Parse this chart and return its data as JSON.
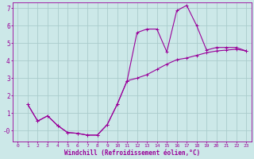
{
  "background_color": "#cce8e8",
  "grid_color": "#aacccc",
  "line_color": "#990099",
  "xlabel": "Windchill (Refroidissement éolien,°C)",
  "xlabel_fontsize": 5.5,
  "xtick_fontsize": 4.5,
  "ytick_fontsize": 5.5,
  "xlim": [
    -0.5,
    23.5
  ],
  "ylim": [
    -0.6,
    7.3
  ],
  "yticks": [
    0,
    1,
    2,
    3,
    4,
    5,
    6,
    7
  ],
  "ytick_labels": [
    "-0",
    "1",
    "2",
    "3",
    "4",
    "5",
    "6",
    "7"
  ],
  "xticks": [
    0,
    1,
    2,
    3,
    4,
    5,
    6,
    7,
    8,
    9,
    10,
    11,
    12,
    13,
    14,
    15,
    16,
    17,
    18,
    19,
    20,
    21,
    22,
    23
  ],
  "curve1_x": [
    1,
    2,
    3,
    4,
    5,
    6,
    7,
    8,
    9,
    10,
    11,
    12,
    13,
    14,
    15,
    16,
    17,
    18,
    19,
    20,
    21,
    22,
    23
  ],
  "curve1_y": [
    1.5,
    0.55,
    0.85,
    0.3,
    -0.1,
    -0.15,
    -0.25,
    -0.25,
    0.35,
    1.5,
    2.85,
    5.6,
    5.8,
    5.8,
    4.5,
    6.85,
    7.15,
    6.0,
    4.6,
    4.75,
    4.75,
    4.75,
    4.55
  ],
  "curve2_x": [
    1,
    2,
    3,
    4,
    5,
    6,
    7,
    8,
    9,
    10,
    11,
    12,
    13,
    14,
    15,
    16,
    17,
    18,
    19,
    20,
    21,
    22,
    23
  ],
  "curve2_y": [
    1.5,
    0.55,
    0.85,
    0.3,
    -0.1,
    -0.15,
    -0.25,
    -0.25,
    0.35,
    1.5,
    2.85,
    3.0,
    3.2,
    3.5,
    3.8,
    4.05,
    4.15,
    4.3,
    4.45,
    4.55,
    4.6,
    4.65,
    4.55
  ]
}
